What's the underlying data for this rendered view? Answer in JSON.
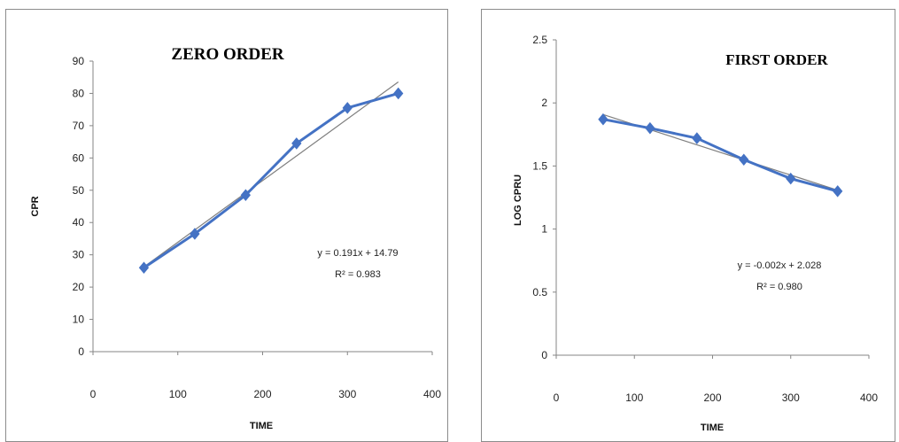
{
  "chart_data": [
    {
      "type": "line",
      "title": "ZERO ORDER",
      "xlabel": "TIME",
      "ylabel": "CPR",
      "xlim": [
        0,
        400
      ],
      "ylim": [
        0,
        90
      ],
      "xticks": [
        "0",
        "100",
        "200",
        "300",
        "400"
      ],
      "yticks": [
        "0",
        "10",
        "20",
        "30",
        "40",
        "50",
        "60",
        "70",
        "80",
        "90"
      ],
      "grid": false,
      "series": [
        {
          "x": [
            60,
            120,
            180,
            240,
            300,
            360
          ],
          "values": [
            26,
            36.5,
            48.5,
            64.5,
            75.5,
            80
          ],
          "color": "#4472C4",
          "marker": "diamond"
        }
      ],
      "trendline": {
        "slope": 0.191,
        "intercept": 14.79,
        "x_range": [
          60,
          360
        ],
        "color": "#7f7f7f"
      },
      "annotations": [
        "y = 0.191x + 14.79",
        "R² = 0.983"
      ]
    },
    {
      "type": "line",
      "title": "FIRST ORDER",
      "xlabel": "TIME",
      "ylabel": "LOG CPRU",
      "xlim": [
        0,
        400
      ],
      "ylim": [
        0,
        2.5
      ],
      "xticks": [
        "0",
        "100",
        "200",
        "300",
        "400"
      ],
      "yticks": [
        "0",
        "0.5",
        "1",
        "1.5",
        "2",
        "2.5"
      ],
      "grid": false,
      "series": [
        {
          "x": [
            60,
            120,
            180,
            240,
            300,
            360
          ],
          "values": [
            1.87,
            1.8,
            1.72,
            1.55,
            1.4,
            1.3
          ],
          "color": "#4472C4",
          "marker": "diamond"
        }
      ],
      "trendline": {
        "slope": -0.002,
        "intercept": 2.028,
        "x_range": [
          60,
          360
        ],
        "color": "#7f7f7f"
      },
      "annotations": [
        "y = -0.002x + 2.028",
        "R² = 0.980"
      ]
    }
  ]
}
